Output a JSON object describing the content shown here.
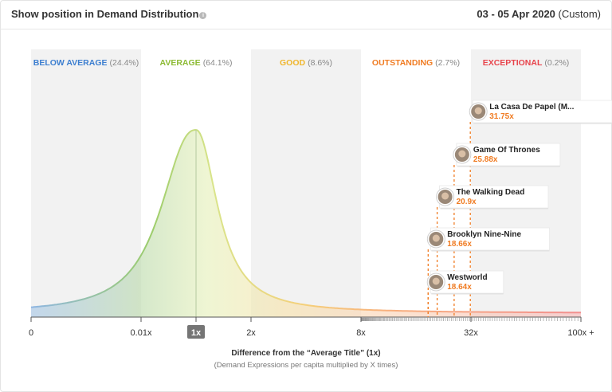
{
  "header": {
    "title": "Show position in Demand Distribution",
    "date_range": "03 - 05 Apr 2020",
    "date_suffix": "(Custom)"
  },
  "chart_data": {
    "type": "area",
    "x_scale": "log",
    "x_label": "Difference from the “Average Title” (1x)",
    "x_sublabel": "(Demand Expressions per capita multiplied by X times)",
    "x_ticks": [
      "0",
      "0.01x",
      "1x",
      "2x",
      "8x",
      "32x",
      "100x +"
    ],
    "highlighted_tick": "1x",
    "bands": [
      {
        "name": "BELOW AVERAGE",
        "share": "(24.4%)",
        "color": "#3d7fd0",
        "shaded": true
      },
      {
        "name": "AVERAGE",
        "share": "(64.1%)",
        "color": "#8dbb35",
        "shaded": false
      },
      {
        "name": "GOOD",
        "share": "(8.6%)",
        "color": "#f0b62d",
        "shaded": true
      },
      {
        "name": "OUTSTANDING",
        "share": "(2.7%)",
        "color": "#f07c23",
        "shaded": false
      },
      {
        "name": "EXCEPTIONAL",
        "share": "(0.2%)",
        "color": "#e8444c",
        "shaded": true
      }
    ],
    "shows": [
      {
        "title": "La Casa De Papel (M...",
        "multiplier": "31.75x",
        "value": 31.75
      },
      {
        "title": "Game Of Thrones",
        "multiplier": "25.88x",
        "value": 25.88
      },
      {
        "title": "The Walking Dead",
        "multiplier": "20.9x",
        "value": 20.9
      },
      {
        "title": "Brooklyn Nine-Nine",
        "multiplier": "18.66x",
        "value": 18.66
      },
      {
        "title": "Westworld",
        "multiplier": "18.64x",
        "value": 18.64
      }
    ],
    "accent_color": "#f07c23"
  }
}
